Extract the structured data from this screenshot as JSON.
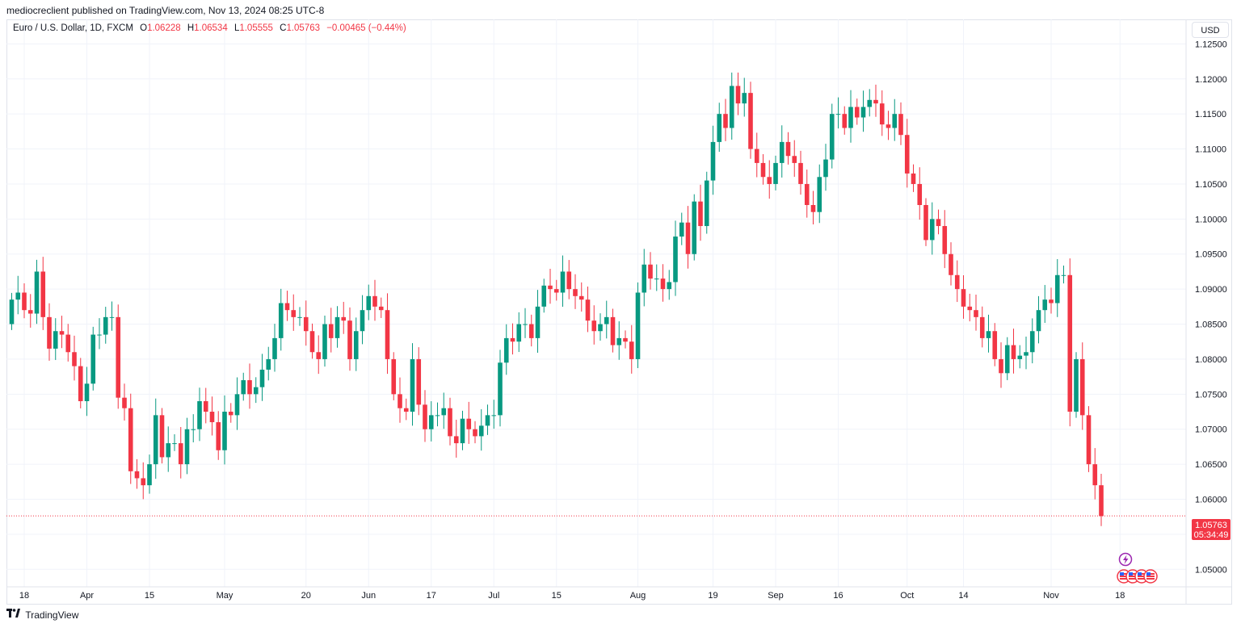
{
  "header": {
    "published_text": "mediocreclient published on TradingView.com, Nov 13, 2024 08:25 UTC-8"
  },
  "legend": {
    "symbol": "Euro / U.S. Dollar, 1D, FXCM",
    "o_label": "O",
    "o_value": "1.06228",
    "h_label": "H",
    "h_value": "1.06534",
    "l_label": "L",
    "l_value": "1.05555",
    "c_label": "C",
    "c_value": "1.05763",
    "change": "−0.00465 (−0.44%)"
  },
  "currency_button": "USD",
  "last_price": {
    "value": "1.05763",
    "countdown": "05:34:49"
  },
  "footer": {
    "brand": "TradingView"
  },
  "colors": {
    "up": "#089981",
    "down": "#f23645",
    "grid": "#f0f3fa",
    "text": "#131722"
  },
  "chart_data": {
    "type": "candlestick",
    "title": "Euro / U.S. Dollar, 1D, FXCM",
    "ylim": [
      1.0475,
      1.1285
    ],
    "y_ticks": [
      "1.05000",
      "1.05500",
      "1.06000",
      "1.06500",
      "1.07000",
      "1.07500",
      "1.08000",
      "1.08500",
      "1.09000",
      "1.09500",
      "1.10000",
      "1.10500",
      "1.11000",
      "1.11500",
      "1.12000",
      "1.12500"
    ],
    "x_ticks": [
      {
        "label": "18",
        "index": 2
      },
      {
        "label": "Apr",
        "index": 12
      },
      {
        "label": "15",
        "index": 22
      },
      {
        "label": "May",
        "index": 34
      },
      {
        "label": "20",
        "index": 47
      },
      {
        "label": "Jun",
        "index": 57
      },
      {
        "label": "17",
        "index": 67
      },
      {
        "label": "Jul",
        "index": 77
      },
      {
        "label": "15",
        "index": 87
      },
      {
        "label": "Aug",
        "index": 100
      },
      {
        "label": "19",
        "index": 112
      },
      {
        "label": "Sep",
        "index": 122
      },
      {
        "label": "16",
        "index": 132
      },
      {
        "label": "Oct",
        "index": 143
      },
      {
        "label": "14",
        "index": 152
      },
      {
        "label": "Nov",
        "index": 166
      },
      {
        "label": "18",
        "index": 177
      }
    ],
    "last_price": 1.05763,
    "closes": [
      1.0885,
      1.0895,
      1.087,
      1.0865,
      1.0925,
      1.086,
      1.0815,
      1.084,
      1.0835,
      1.081,
      1.079,
      1.074,
      1.0765,
      1.0835,
      1.0835,
      1.086,
      1.086,
      1.0745,
      1.073,
      1.064,
      1.063,
      1.062,
      1.065,
      1.072,
      1.066,
      1.068,
      1.068,
      1.065,
      1.07,
      1.07,
      1.074,
      1.0725,
      1.071,
      1.067,
      1.0725,
      1.072,
      1.075,
      1.077,
      1.075,
      1.076,
      1.0785,
      1.08,
      1.083,
      1.088,
      1.087,
      1.086,
      1.086,
      1.084,
      1.081,
      1.08,
      1.085,
      1.083,
      1.086,
      1.0855,
      1.08,
      1.084,
      1.087,
      1.089,
      1.0875,
      1.087,
      1.08,
      1.075,
      1.073,
      1.0725,
      1.08,
      1.0735,
      1.07,
      1.072,
      1.072,
      1.073,
      1.069,
      1.068,
      1.0715,
      1.07,
      1.069,
      1.0705,
      1.072,
      1.072,
      1.0795,
      1.083,
      1.0825,
      1.085,
      1.085,
      1.083,
      1.0875,
      1.0905,
      1.09,
      1.0895,
      1.0925,
      1.09,
      1.089,
      1.0885,
      1.0855,
      1.084,
      1.085,
      1.086,
      1.082,
      1.083,
      1.0825,
      1.08,
      1.0895,
      1.0935,
      1.0915,
      1.0915,
      1.09,
      1.091,
      1.0975,
      1.0995,
      1.095,
      1.1025,
      1.099,
      1.1055,
      1.111,
      1.115,
      1.113,
      1.119,
      1.1165,
      1.118,
      1.11,
      1.108,
      1.106,
      1.105,
      1.108,
      1.111,
      1.109,
      1.108,
      1.105,
      1.102,
      1.101,
      1.106,
      1.1085,
      1.115,
      1.115,
      1.113,
      1.116,
      1.1145,
      1.116,
      1.117,
      1.1165,
      1.1135,
      1.113,
      1.115,
      1.112,
      1.1065,
      1.105,
      1.102,
      1.097,
      1.1,
      1.099,
      1.095,
      1.092,
      1.09,
      1.0875,
      1.087,
      1.086,
      1.083,
      1.084,
      1.08,
      1.078,
      1.082,
      1.08,
      1.0805,
      1.081,
      1.084,
      1.087,
      1.0885,
      1.088,
      1.092,
      1.092,
      1.0725,
      1.08,
      1.072,
      1.065,
      1.062,
      1.0576
    ]
  }
}
